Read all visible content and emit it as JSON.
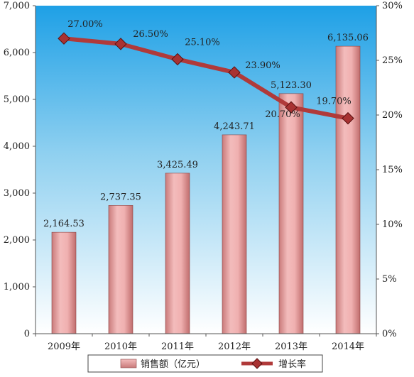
{
  "chart_data": {
    "type": "bar",
    "categories": [
      "2009年",
      "2010年",
      "2011年",
      "2012年",
      "2013年",
      "2014年"
    ],
    "series": [
      {
        "name": "销售额（亿元）",
        "type": "bar",
        "axis": "left",
        "values": [
          2164.53,
          2737.35,
          3425.49,
          4243.71,
          5123.3,
          6135.06
        ],
        "labels": [
          "2,164.53",
          "2,737.35",
          "3,425.49",
          "4,243.71",
          "5,123.30",
          "6,135.06"
        ],
        "color": "#e8a3a3"
      },
      {
        "name": "增长率",
        "type": "line",
        "axis": "right",
        "values": [
          27.0,
          26.5,
          25.1,
          23.9,
          20.7,
          19.7
        ],
        "labels": [
          "27.00%",
          "26.50%",
          "25.10%",
          "23.90%",
          "20.70%",
          "19.70%"
        ],
        "color": "#b03a3a"
      }
    ],
    "y_left": {
      "ylim": [
        0,
        7000
      ],
      "ticks": [
        "0",
        "1,000",
        "2,000",
        "3,000",
        "4,000",
        "5,000",
        "6,000",
        "7,000"
      ]
    },
    "y_right": {
      "ylim": [
        0,
        30
      ],
      "ticks": [
        "0%",
        "5%",
        "10%",
        "15%",
        "20%",
        "25%",
        "30%"
      ]
    },
    "background": "gradient blue (top) to white (bottom)",
    "legend_position": "bottom"
  }
}
